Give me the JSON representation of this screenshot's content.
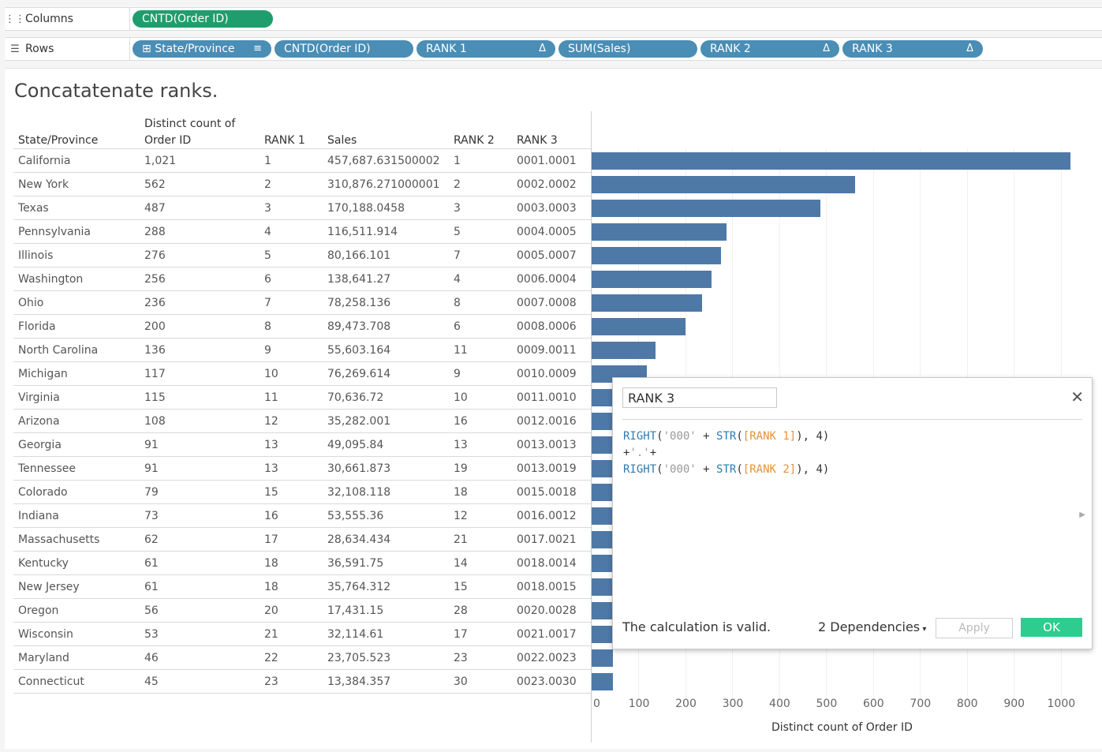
{
  "shelves": {
    "columns": {
      "label": "Columns",
      "pills": [
        "CNTD(Order ID)"
      ]
    },
    "rows": {
      "label": "Rows",
      "pills": [
        "State/Province",
        "CNTD(Order ID)",
        "RANK 1",
        "SUM(Sales)",
        "RANK 2",
        "RANK 3"
      ]
    }
  },
  "viz": {
    "title": "Concatatenate ranks.",
    "headers": {
      "state": "State/Province",
      "cntd_line1": "Distinct count of",
      "cntd_line2": "Order ID",
      "rank1": "RANK 1",
      "sales": "Sales",
      "rank2": "RANK 2",
      "rank3": "RANK 3"
    },
    "rows": [
      {
        "state": "California",
        "cntd": "1,021",
        "rank1": "1",
        "sales": "457,687.631500002",
        "rank2": "1",
        "rank3": "0001.0001"
      },
      {
        "state": "New York",
        "cntd": "562",
        "rank1": "2",
        "sales": "310,876.271000001",
        "rank2": "2",
        "rank3": "0002.0002"
      },
      {
        "state": "Texas",
        "cntd": "487",
        "rank1": "3",
        "sales": "170,188.0458",
        "rank2": "3",
        "rank3": "0003.0003"
      },
      {
        "state": "Pennsylvania",
        "cntd": "288",
        "rank1": "4",
        "sales": "116,511.914",
        "rank2": "5",
        "rank3": "0004.0005"
      },
      {
        "state": "Illinois",
        "cntd": "276",
        "rank1": "5",
        "sales": "80,166.101",
        "rank2": "7",
        "rank3": "0005.0007"
      },
      {
        "state": "Washington",
        "cntd": "256",
        "rank1": "6",
        "sales": "138,641.27",
        "rank2": "4",
        "rank3": "0006.0004"
      },
      {
        "state": "Ohio",
        "cntd": "236",
        "rank1": "7",
        "sales": "78,258.136",
        "rank2": "8",
        "rank3": "0007.0008"
      },
      {
        "state": "Florida",
        "cntd": "200",
        "rank1": "8",
        "sales": "89,473.708",
        "rank2": "6",
        "rank3": "0008.0006"
      },
      {
        "state": "North Carolina",
        "cntd": "136",
        "rank1": "9",
        "sales": "55,603.164",
        "rank2": "11",
        "rank3": "0009.0011"
      },
      {
        "state": "Michigan",
        "cntd": "117",
        "rank1": "10",
        "sales": "76,269.614",
        "rank2": "9",
        "rank3": "0010.0009"
      },
      {
        "state": "Virginia",
        "cntd": "115",
        "rank1": "11",
        "sales": "70,636.72",
        "rank2": "10",
        "rank3": "0011.0010"
      },
      {
        "state": "Arizona",
        "cntd": "108",
        "rank1": "12",
        "sales": "35,282.001",
        "rank2": "16",
        "rank3": "0012.0016"
      },
      {
        "state": "Georgia",
        "cntd": "91",
        "rank1": "13",
        "sales": "49,095.84",
        "rank2": "13",
        "rank3": "0013.0013"
      },
      {
        "state": "Tennessee",
        "cntd": "91",
        "rank1": "13",
        "sales": "30,661.873",
        "rank2": "19",
        "rank3": "0013.0019"
      },
      {
        "state": "Colorado",
        "cntd": "79",
        "rank1": "15",
        "sales": "32,108.118",
        "rank2": "18",
        "rank3": "0015.0018"
      },
      {
        "state": "Indiana",
        "cntd": "73",
        "rank1": "16",
        "sales": "53,555.36",
        "rank2": "12",
        "rank3": "0016.0012"
      },
      {
        "state": "Massachusetts",
        "cntd": "62",
        "rank1": "17",
        "sales": "28,634.434",
        "rank2": "21",
        "rank3": "0017.0021"
      },
      {
        "state": "Kentucky",
        "cntd": "61",
        "rank1": "18",
        "sales": "36,591.75",
        "rank2": "14",
        "rank3": "0018.0014"
      },
      {
        "state": "New Jersey",
        "cntd": "61",
        "rank1": "18",
        "sales": "35,764.312",
        "rank2": "15",
        "rank3": "0018.0015"
      },
      {
        "state": "Oregon",
        "cntd": "56",
        "rank1": "20",
        "sales": "17,431.15",
        "rank2": "28",
        "rank3": "0020.0028"
      },
      {
        "state": "Wisconsin",
        "cntd": "53",
        "rank1": "21",
        "sales": "32,114.61",
        "rank2": "17",
        "rank3": "0021.0017"
      },
      {
        "state": "Maryland",
        "cntd": "46",
        "rank1": "22",
        "sales": "23,705.523",
        "rank2": "23",
        "rank3": "0022.0023"
      },
      {
        "state": "Connecticut",
        "cntd": "45",
        "rank1": "23",
        "sales": "13,384.357",
        "rank2": "30",
        "rank3": "0023.0030"
      }
    ]
  },
  "chart_data": {
    "type": "bar",
    "orientation": "horizontal",
    "xlabel": "Distinct count of Order ID",
    "xlim": [
      0,
      1030
    ],
    "ticks": [
      0,
      100,
      200,
      300,
      400,
      500,
      600,
      700,
      800,
      900,
      1000
    ],
    "categories": [
      "California",
      "New York",
      "Texas",
      "Pennsylvania",
      "Illinois",
      "Washington",
      "Ohio",
      "Florida",
      "North Carolina",
      "Michigan",
      "Virginia",
      "Arizona",
      "Georgia",
      "Tennessee",
      "Colorado",
      "Indiana",
      "Massachusetts",
      "Kentucky",
      "New Jersey",
      "Oregon",
      "Wisconsin",
      "Maryland",
      "Connecticut"
    ],
    "values": [
      1021,
      562,
      487,
      288,
      276,
      256,
      236,
      200,
      136,
      117,
      115,
      108,
      91,
      91,
      79,
      73,
      62,
      61,
      61,
      56,
      53,
      46,
      45
    ],
    "bar_color": "#4e79a7"
  },
  "dialog": {
    "name": "RANK 3",
    "close_glyph": "✕",
    "formula_lines": [
      [
        {
          "t": "kw",
          "v": "RIGHT"
        },
        {
          "t": "op",
          "v": "("
        },
        {
          "t": "str",
          "v": "'000'"
        },
        {
          "t": "op",
          "v": " + "
        },
        {
          "t": "kw",
          "v": "STR"
        },
        {
          "t": "op",
          "v": "("
        },
        {
          "t": "fld",
          "v": "[RANK 1]"
        },
        {
          "t": "op",
          "v": "), 4)"
        }
      ],
      [
        {
          "t": "op",
          "v": "+"
        },
        {
          "t": "str",
          "v": "'.'"
        },
        {
          "t": "op",
          "v": "+"
        }
      ],
      [
        {
          "t": "kw",
          "v": "RIGHT"
        },
        {
          "t": "op",
          "v": "("
        },
        {
          "t": "str",
          "v": "'000'"
        },
        {
          "t": "op",
          "v": " + "
        },
        {
          "t": "kw",
          "v": "STR"
        },
        {
          "t": "op",
          "v": "("
        },
        {
          "t": "fld",
          "v": "[RANK 2]"
        },
        {
          "t": "op",
          "v": "), 4)"
        }
      ]
    ],
    "status": "The calculation is valid.",
    "dependencies": "2 Dependencies",
    "apply_label": "Apply",
    "ok_label": "OK"
  },
  "colors": {
    "green_pill": "#1f9e6d",
    "blue_pill": "#4a8eb6",
    "ok_button": "#2ecc8e"
  }
}
